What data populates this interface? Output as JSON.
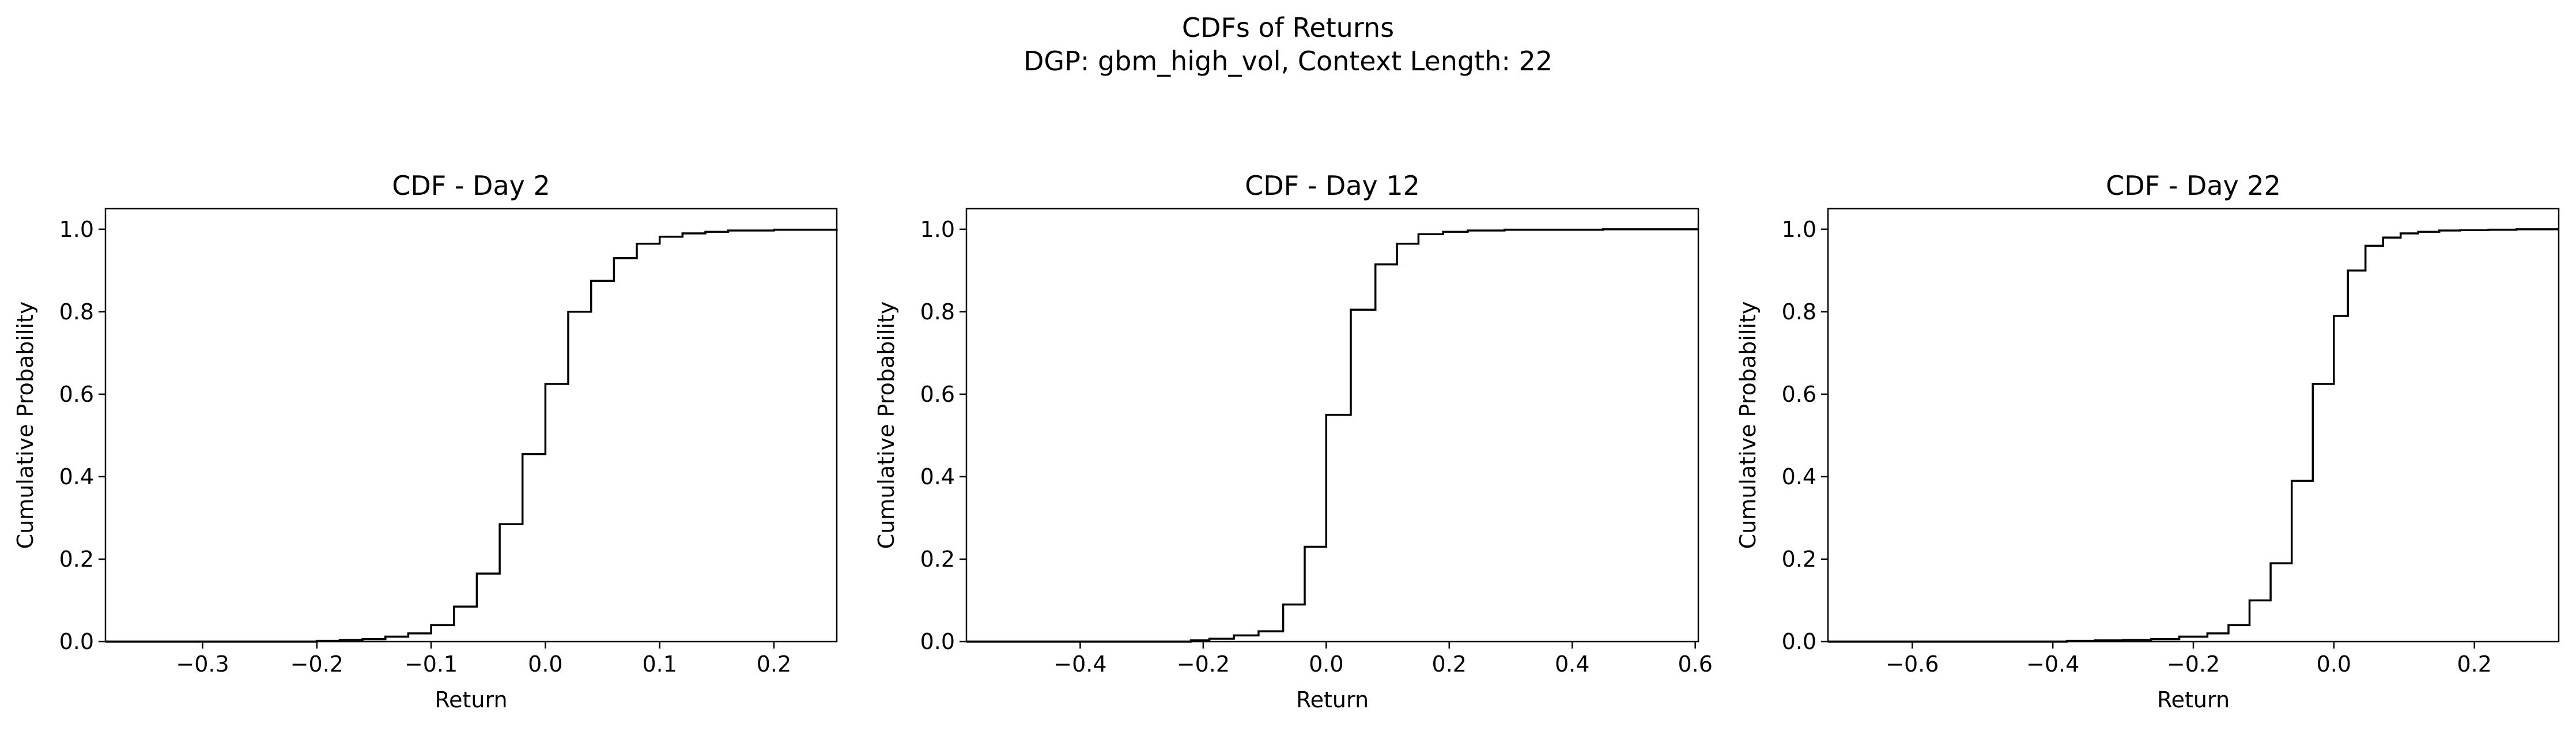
{
  "figure": {
    "title": "CDFs of Returns",
    "subtitle": "DGP: gbm_high_vol, Context Length: 22"
  },
  "chart_data": [
    {
      "type": "line",
      "step": true,
      "title": "CDF - Day 2",
      "xlabel": "Return",
      "ylabel": "Cumulative Probability",
      "xlim": [
        -0.385,
        0.255
      ],
      "ylim": [
        0,
        1.05
      ],
      "xticks": [
        -0.3,
        -0.2,
        -0.1,
        0.0,
        0.1,
        0.2
      ],
      "xtick_labels": [
        "−0.3",
        "−0.2",
        "−0.1",
        "0.0",
        "0.1",
        "0.2"
      ],
      "yticks": [
        0.0,
        0.2,
        0.4,
        0.6,
        0.8,
        1.0
      ],
      "ytick_labels": [
        "0.0",
        "0.2",
        "0.4",
        "0.6",
        "0.8",
        "1.0"
      ],
      "line_color": "#000000",
      "grid": false,
      "series": [
        {
          "x": [
            -0.385,
            -0.22,
            -0.2,
            -0.18,
            -0.16,
            -0.14,
            -0.12,
            -0.1,
            -0.08,
            -0.06,
            -0.04,
            -0.02,
            0.0,
            0.02,
            0.04,
            0.06,
            0.08,
            0.1,
            0.12,
            0.14,
            0.16,
            0.2,
            0.255
          ],
          "y": [
            0.0,
            0.0,
            0.002,
            0.004,
            0.006,
            0.012,
            0.02,
            0.04,
            0.085,
            0.165,
            0.285,
            0.455,
            0.625,
            0.8,
            0.875,
            0.93,
            0.965,
            0.982,
            0.99,
            0.994,
            0.997,
            0.999,
            1.0
          ]
        }
      ]
    },
    {
      "type": "line",
      "step": true,
      "title": "CDF - Day 12",
      "xlabel": "Return",
      "ylabel": "Cumulative Probability",
      "xlim": [
        -0.585,
        0.605
      ],
      "ylim": [
        0,
        1.05
      ],
      "xticks": [
        -0.4,
        -0.2,
        0.0,
        0.2,
        0.4,
        0.6
      ],
      "xtick_labels": [
        "−0.4",
        "−0.2",
        "0.0",
        "0.2",
        "0.4",
        "0.6"
      ],
      "yticks": [
        0.0,
        0.2,
        0.4,
        0.6,
        0.8,
        1.0
      ],
      "ytick_labels": [
        "0.0",
        "0.2",
        "0.4",
        "0.6",
        "0.8",
        "1.0"
      ],
      "line_color": "#000000",
      "grid": false,
      "series": [
        {
          "x": [
            -0.585,
            -0.25,
            -0.22,
            -0.19,
            -0.15,
            -0.11,
            -0.07,
            -0.035,
            0.0,
            0.04,
            0.08,
            0.115,
            0.15,
            0.19,
            0.23,
            0.29,
            0.45,
            0.605
          ],
          "y": [
            0.0,
            0.0,
            0.003,
            0.007,
            0.015,
            0.025,
            0.09,
            0.23,
            0.55,
            0.805,
            0.915,
            0.965,
            0.988,
            0.994,
            0.997,
            0.999,
            1.0,
            1.0
          ]
        }
      ]
    },
    {
      "type": "line",
      "step": true,
      "title": "CDF - Day 22",
      "xlabel": "Return",
      "ylabel": "Cumulative Probability",
      "xlim": [
        -0.72,
        0.32
      ],
      "ylim": [
        0,
        1.05
      ],
      "xticks": [
        -0.6,
        -0.4,
        -0.2,
        0.0,
        0.2
      ],
      "xtick_labels": [
        "−0.6",
        "−0.4",
        "−0.2",
        "0.0",
        "0.2"
      ],
      "yticks": [
        0.0,
        0.2,
        0.4,
        0.6,
        0.8,
        1.0
      ],
      "ytick_labels": [
        "0.0",
        "0.2",
        "0.4",
        "0.6",
        "0.8",
        "1.0"
      ],
      "line_color": "#000000",
      "grid": false,
      "series": [
        {
          "x": [
            -0.72,
            -0.42,
            -0.38,
            -0.34,
            -0.3,
            -0.26,
            -0.22,
            -0.18,
            -0.15,
            -0.12,
            -0.09,
            -0.06,
            -0.03,
            0.0,
            0.02,
            0.045,
            0.07,
            0.095,
            0.12,
            0.15,
            0.18,
            0.22,
            0.26,
            0.32
          ],
          "y": [
            0.0,
            0.0,
            0.002,
            0.003,
            0.004,
            0.006,
            0.012,
            0.02,
            0.04,
            0.1,
            0.19,
            0.39,
            0.625,
            0.79,
            0.9,
            0.96,
            0.98,
            0.99,
            0.994,
            0.997,
            0.998,
            0.999,
            1.0,
            1.0
          ]
        }
      ]
    }
  ]
}
